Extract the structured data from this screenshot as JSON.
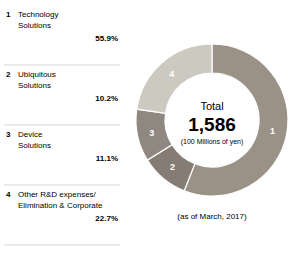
{
  "chart_data": {
    "type": "donut",
    "title": "Total",
    "annotations": [
      "1,586",
      "(100 Millions of yen)"
    ],
    "subtitle": "(as of March, 2017)",
    "categories": [
      "Technology\nSolutions",
      "Ubiquitous\nSolutions",
      "Device\nSolutions",
      "Other R&D expenses/\nElimination & Corporate"
    ],
    "labels": [
      "1",
      "2",
      "3",
      "4"
    ],
    "values": [
      55.9,
      10.2,
      11.1,
      22.7
    ],
    "value_labels": [
      "55.9%",
      "10.2%",
      "11.1%",
      "22.7%"
    ],
    "colors": [
      "#9a9187",
      "#857d74",
      "#8f8880",
      "#ccc9c1"
    ],
    "legend": "left"
  }
}
